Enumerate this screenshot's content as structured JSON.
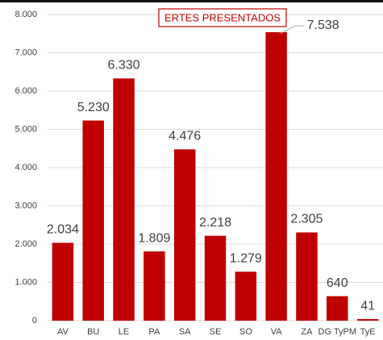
{
  "chart_data": {
    "type": "bar",
    "title": "ERTES PRESENTADOS",
    "categories": [
      "AV",
      "BU",
      "LE",
      "PA",
      "SA",
      "SE",
      "SO",
      "VA",
      "ZA",
      "DG TyPM",
      "TyE"
    ],
    "values": [
      2034,
      5230,
      6330,
      1809,
      4476,
      2218,
      1279,
      7538,
      2305,
      640,
      41
    ],
    "value_labels": [
      "2.034",
      "5.230",
      "6.330",
      "1.809",
      "4.476",
      "2.218",
      "1.279",
      "7.538",
      "2.305",
      "640",
      "41"
    ],
    "color": "#c00000",
    "ylim": [
      0,
      8000
    ],
    "yticks": [
      0,
      {
        "value": 1000,
        "label": "1.000"
      },
      {
        "value": 2000,
        "label": "2.000"
      },
      {
        "value": 3000,
        "label": "3.000"
      },
      {
        "value": 4000,
        "label": "4.000"
      },
      {
        "value": 5000,
        "label": "5.000"
      },
      {
        "value": 6000,
        "label": "6.000"
      },
      {
        "value": 7000,
        "label": "7.000"
      },
      {
        "value": 8000,
        "label": "8.000"
      }
    ],
    "grid": true
  }
}
